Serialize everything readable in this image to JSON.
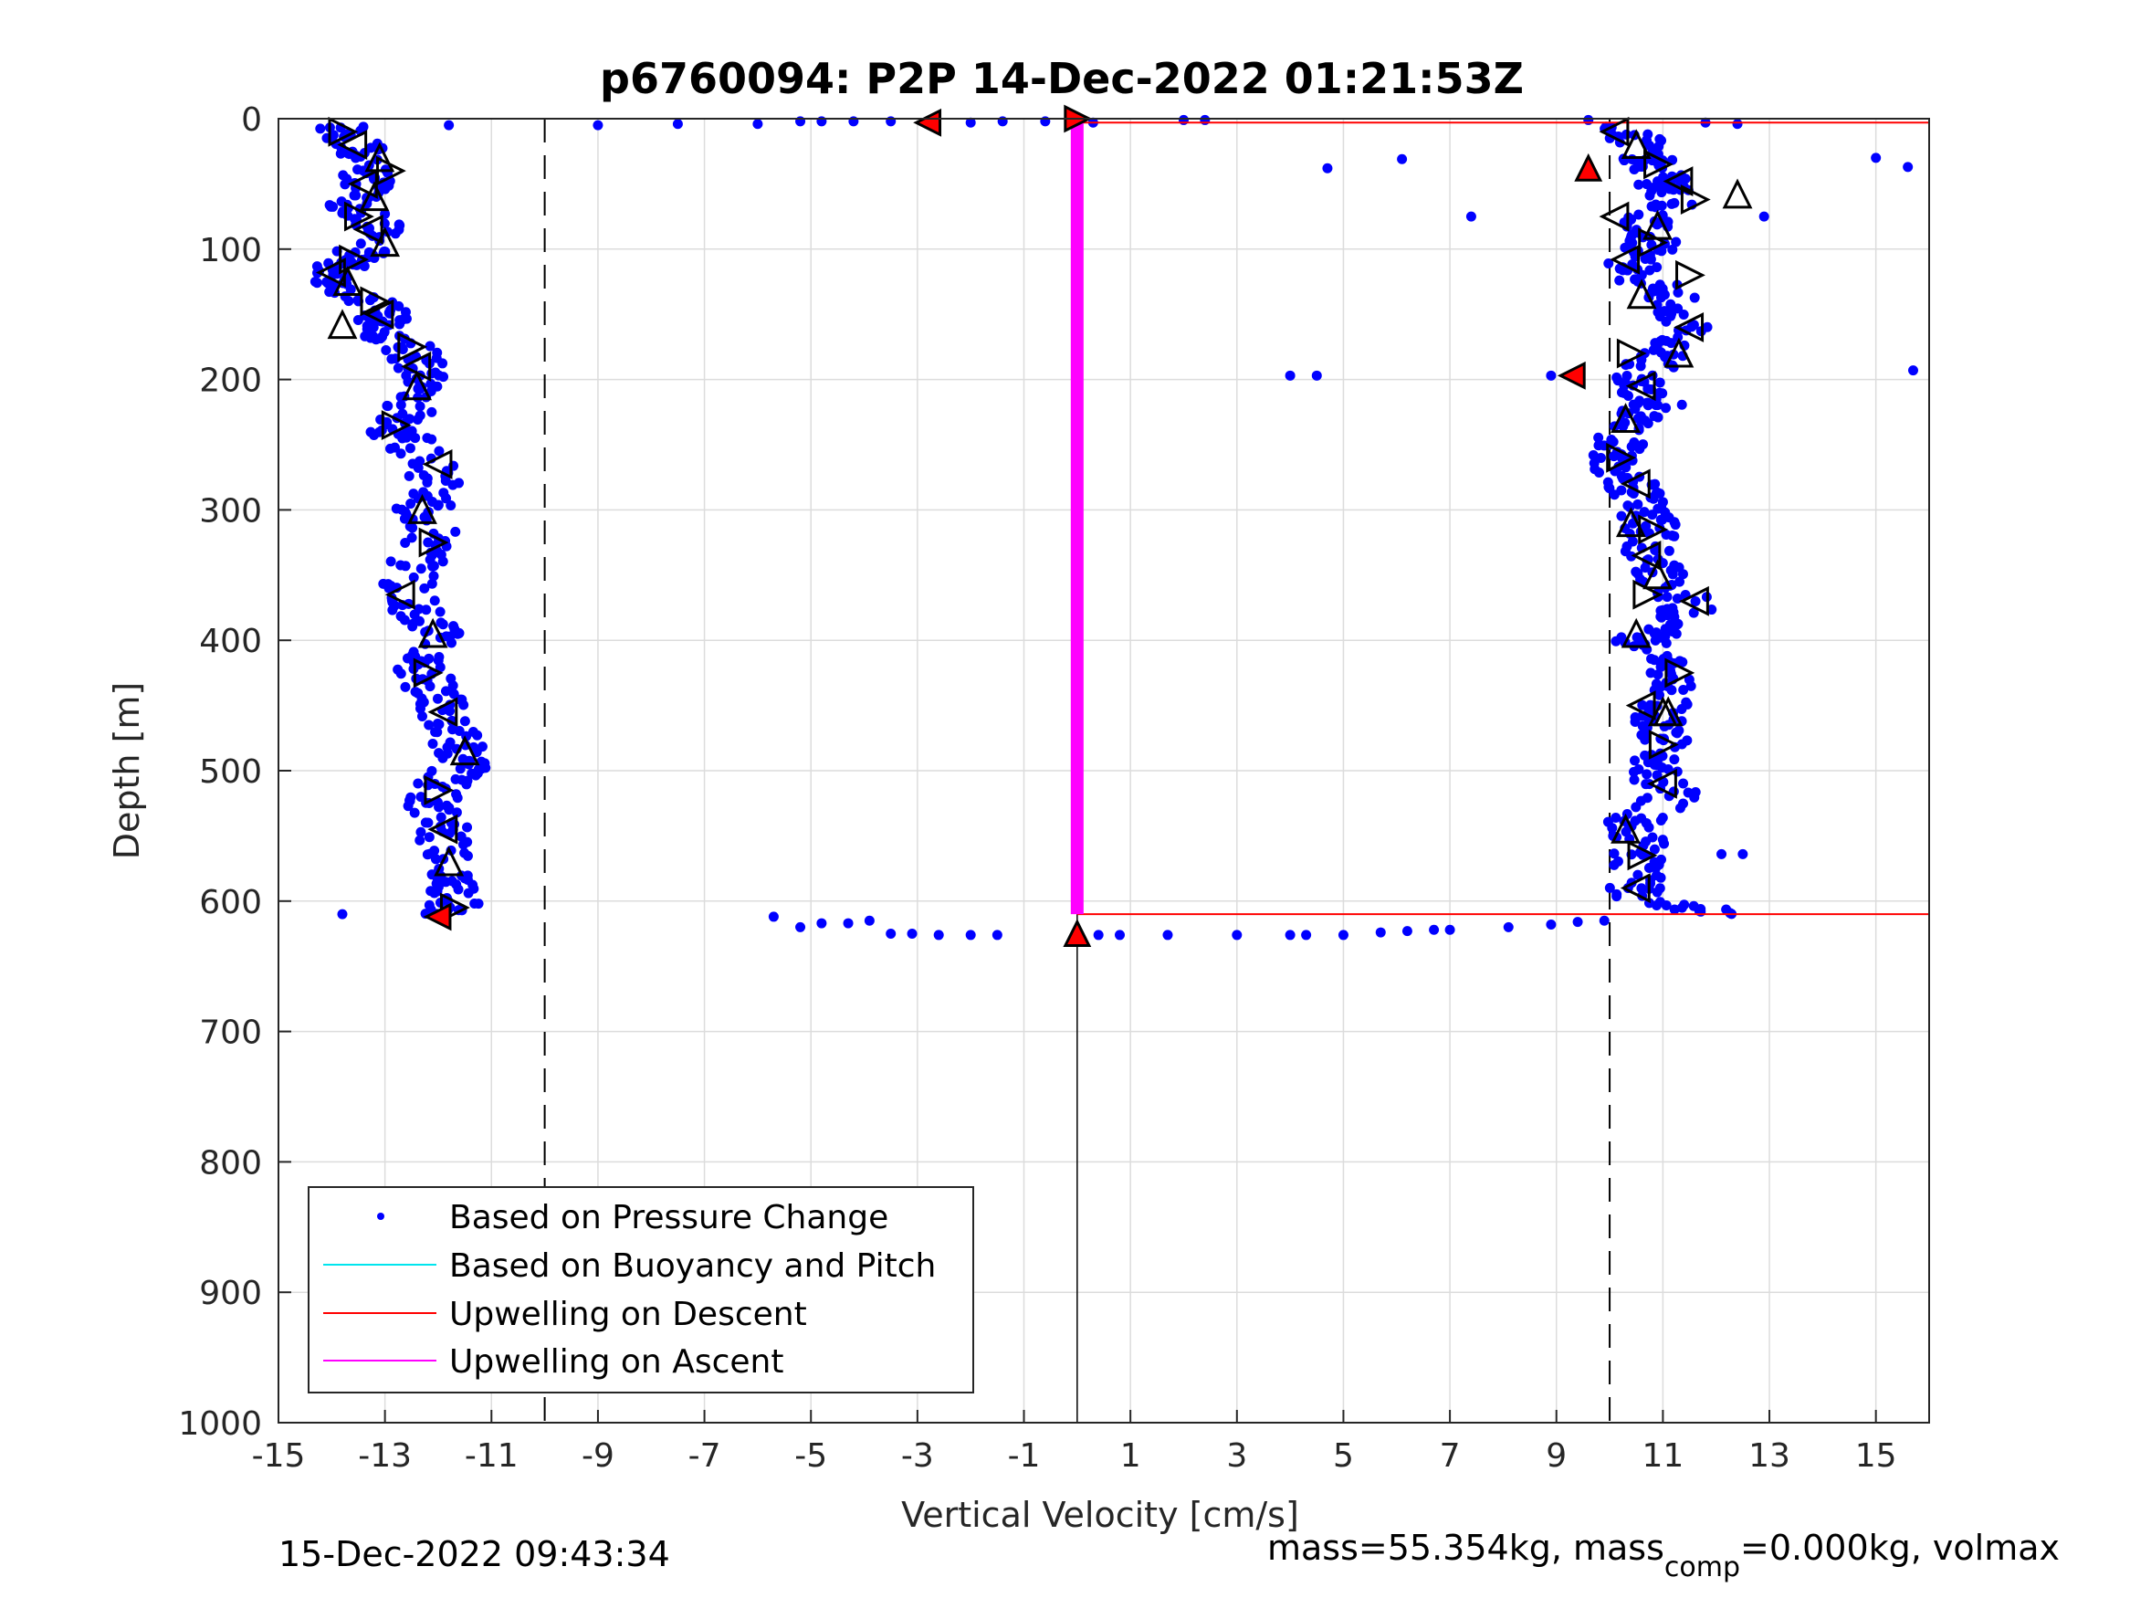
{
  "chart_data": {
    "type": "scatter",
    "title": "p6760094: P2P 14-Dec-2022 01:21:53Z",
    "xlabel": "Vertical Velocity [cm/s]",
    "ylabel": "Depth [m]",
    "xlim": [
      -15,
      16
    ],
    "ylim": [
      0,
      1000
    ],
    "y_reversed": true,
    "grid": true,
    "xticks": [
      -15,
      -13,
      -11,
      -9,
      -7,
      -5,
      -3,
      -1,
      1,
      3,
      5,
      7,
      9,
      11,
      13,
      15
    ],
    "yticks": [
      0,
      100,
      200,
      300,
      400,
      500,
      600,
      700,
      800,
      900,
      1000
    ],
    "reference_lines_x": [
      -10,
      10
    ],
    "legend_position": "bottom-left",
    "legend": [
      {
        "label": "Based on Pressure Change",
        "color": "#0000ff",
        "style": "dot"
      },
      {
        "label": "Based on Buoyancy and Pitch",
        "color": "#00e5ee",
        "style": "line"
      },
      {
        "label": "Upwelling on Descent",
        "color": "#ff0000",
        "style": "line"
      },
      {
        "label": "Upwelling on Ascent",
        "color": "#ff00ff",
        "style": "line"
      }
    ],
    "series": [
      {
        "name": "Based on Pressure Change",
        "color": "#0000ff",
        "descent_profile": [
          [
            -13.8,
            5
          ],
          [
            -13.6,
            20
          ],
          [
            -13.2,
            35
          ],
          [
            -13.4,
            50
          ],
          [
            -13.6,
            65
          ],
          [
            -13.1,
            80
          ],
          [
            -13.3,
            95
          ],
          [
            -13.7,
            110
          ],
          [
            -14.0,
            120
          ],
          [
            -13.5,
            135
          ],
          [
            -13.0,
            150
          ],
          [
            -13.2,
            160
          ],
          [
            -12.5,
            175
          ],
          [
            -12.4,
            190
          ],
          [
            -12.3,
            205
          ],
          [
            -12.6,
            225
          ],
          [
            -12.8,
            240
          ],
          [
            -12.2,
            260
          ],
          [
            -12.0,
            280
          ],
          [
            -12.3,
            300
          ],
          [
            -12.1,
            320
          ],
          [
            -12.4,
            340
          ],
          [
            -12.6,
            365
          ],
          [
            -12.2,
            385
          ],
          [
            -12.0,
            400
          ],
          [
            -12.3,
            420
          ],
          [
            -12.1,
            440
          ],
          [
            -11.9,
            460
          ],
          [
            -11.6,
            480
          ],
          [
            -11.5,
            495
          ],
          [
            -11.9,
            510
          ],
          [
            -12.1,
            525
          ],
          [
            -11.9,
            545
          ],
          [
            -11.8,
            565
          ],
          [
            -11.7,
            585
          ],
          [
            -11.6,
            600
          ],
          [
            -12.0,
            610
          ]
        ],
        "ascent_profile": [
          [
            10.3,
            5
          ],
          [
            10.6,
            20
          ],
          [
            10.8,
            35
          ],
          [
            11.0,
            50
          ],
          [
            11.2,
            65
          ],
          [
            10.6,
            80
          ],
          [
            10.9,
            95
          ],
          [
            10.4,
            110
          ],
          [
            10.7,
            125
          ],
          [
            11.2,
            140
          ],
          [
            11.4,
            160
          ],
          [
            11.0,
            180
          ],
          [
            10.6,
            195
          ],
          [
            10.7,
            210
          ],
          [
            10.9,
            220
          ],
          [
            10.3,
            235
          ],
          [
            10.1,
            255
          ],
          [
            10.2,
            270
          ],
          [
            10.5,
            285
          ],
          [
            10.6,
            300
          ],
          [
            10.8,
            315
          ],
          [
            10.7,
            335
          ],
          [
            11.0,
            350
          ],
          [
            11.5,
            375
          ],
          [
            11.0,
            390
          ],
          [
            10.6,
            400
          ],
          [
            10.9,
            415
          ],
          [
            11.4,
            430
          ],
          [
            11.1,
            450
          ],
          [
            10.9,
            465
          ],
          [
            11.0,
            480
          ],
          [
            10.8,
            500
          ],
          [
            11.2,
            520
          ],
          [
            10.4,
            540
          ],
          [
            10.6,
            560
          ],
          [
            10.5,
            580
          ],
          [
            10.4,
            600
          ],
          [
            12.4,
            610
          ]
        ],
        "surface_points": [
          [
            -11.8,
            5
          ],
          [
            -9.0,
            5
          ],
          [
            -7.5,
            4
          ],
          [
            -6.0,
            4
          ],
          [
            -5.2,
            2
          ],
          [
            -4.8,
            2
          ],
          [
            -4.2,
            2
          ],
          [
            -3.5,
            2
          ],
          [
            -2.0,
            3
          ],
          [
            -1.4,
            2
          ],
          [
            -0.6,
            2
          ],
          [
            0.3,
            3
          ],
          [
            2.0,
            1
          ],
          [
            2.4,
            1
          ],
          [
            9.6,
            1
          ],
          [
            11.8,
            3
          ],
          [
            12.4,
            4
          ],
          [
            15.0,
            30
          ],
          [
            15.6,
            37
          ]
        ],
        "outliers_mid": [
          [
            4.7,
            38
          ],
          [
            6.1,
            31
          ],
          [
            7.4,
            75
          ],
          [
            12.9,
            75
          ],
          [
            4.0,
            197
          ],
          [
            4.5,
            197
          ],
          [
            8.9,
            197
          ],
          [
            15.7,
            193
          ],
          [
            12.1,
            564
          ],
          [
            12.5,
            564
          ],
          [
            -13.8,
            610
          ]
        ],
        "bottom_points": [
          [
            -5.7,
            612
          ],
          [
            -5.2,
            620
          ],
          [
            -4.8,
            617
          ],
          [
            -4.3,
            617
          ],
          [
            -3.9,
            615
          ],
          [
            -3.5,
            625
          ],
          [
            -3.1,
            625
          ],
          [
            -2.6,
            626
          ],
          [
            -2.0,
            626
          ],
          [
            -1.5,
            626
          ],
          [
            0.4,
            626
          ],
          [
            0.8,
            626
          ],
          [
            1.7,
            626
          ],
          [
            3.0,
            626
          ],
          [
            4.0,
            626
          ],
          [
            4.3,
            626
          ],
          [
            5.0,
            626
          ],
          [
            5.7,
            624
          ],
          [
            6.2,
            623
          ],
          [
            6.7,
            622
          ],
          [
            7.0,
            622
          ],
          [
            8.1,
            620
          ],
          [
            8.9,
            618
          ],
          [
            9.4,
            616
          ],
          [
            9.9,
            615
          ]
        ]
      },
      {
        "name": "Upwelling on Descent",
        "color": "#ff0000",
        "x": [
          0,
          16
        ],
        "y": [
          3,
          3
        ],
        "y2": [
          610,
          610
        ]
      },
      {
        "name": "Upwelling on Ascent",
        "color": "#ff00ff",
        "x": [
          0,
          0
        ],
        "y": [
          0,
          610
        ]
      }
    ],
    "markers_open": [
      [
        -13.8,
        10
      ],
      [
        -13.6,
        20
      ],
      [
        -13.1,
        30
      ],
      [
        -12.9,
        40
      ],
      [
        -13.4,
        50
      ],
      [
        -13.2,
        60
      ],
      [
        -13.5,
        75
      ],
      [
        -13.3,
        85
      ],
      [
        -13.0,
        95
      ],
      [
        -13.6,
        108
      ],
      [
        -14.0,
        118
      ],
      [
        -13.7,
        125
      ],
      [
        -13.2,
        140
      ],
      [
        -13.1,
        150
      ],
      [
        -13.8,
        158
      ],
      [
        -12.5,
        175
      ],
      [
        -12.4,
        190
      ],
      [
        -12.4,
        205
      ],
      [
        -12.8,
        235
      ],
      [
        -12.0,
        265
      ],
      [
        -12.3,
        300
      ],
      [
        -12.1,
        325
      ],
      [
        -12.7,
        365
      ],
      [
        -12.1,
        395
      ],
      [
        -12.2,
        425
      ],
      [
        -11.9,
        455
      ],
      [
        -11.5,
        485
      ],
      [
        -12.0,
        515
      ],
      [
        -11.9,
        545
      ],
      [
        -11.8,
        570
      ],
      [
        -11.7,
        605
      ],
      [
        10.1,
        10
      ],
      [
        10.5,
        20
      ],
      [
        10.9,
        35
      ],
      [
        11.3,
        48
      ],
      [
        12.4,
        58
      ],
      [
        11.6,
        62
      ],
      [
        10.1,
        75
      ],
      [
        10.9,
        82
      ],
      [
        10.8,
        95
      ],
      [
        10.3,
        108
      ],
      [
        10.6,
        135
      ],
      [
        11.5,
        120
      ],
      [
        11.5,
        160
      ],
      [
        11.3,
        180
      ],
      [
        10.4,
        180
      ],
      [
        10.6,
        205
      ],
      [
        10.3,
        230
      ],
      [
        10.2,
        260
      ],
      [
        10.5,
        280
      ],
      [
        10.4,
        310
      ],
      [
        10.8,
        315
      ],
      [
        10.7,
        335
      ],
      [
        10.9,
        350
      ],
      [
        10.7,
        365
      ],
      [
        11.6,
        370
      ],
      [
        10.5,
        395
      ],
      [
        11.3,
        425
      ],
      [
        10.6,
        450
      ],
      [
        11.0,
        455
      ],
      [
        11.0,
        480
      ],
      [
        11.0,
        510
      ],
      [
        10.3,
        545
      ],
      [
        10.6,
        565
      ],
      [
        10.5,
        590
      ],
      [
        11.1,
        455
      ]
    ],
    "markers_red": [
      [
        -2.8,
        3
      ],
      [
        0.0,
        0
      ],
      [
        -12.0,
        612
      ],
      [
        0.0,
        625
      ],
      [
        9.6,
        38
      ],
      [
        9.3,
        197
      ]
    ]
  },
  "footer": {
    "timestamp": "15-Dec-2022 09:43:34",
    "mass_text_a": "mass=55.354kg, mass",
    "mass_sub": "comp",
    "mass_text_b": "=0.000kg, volmax"
  }
}
